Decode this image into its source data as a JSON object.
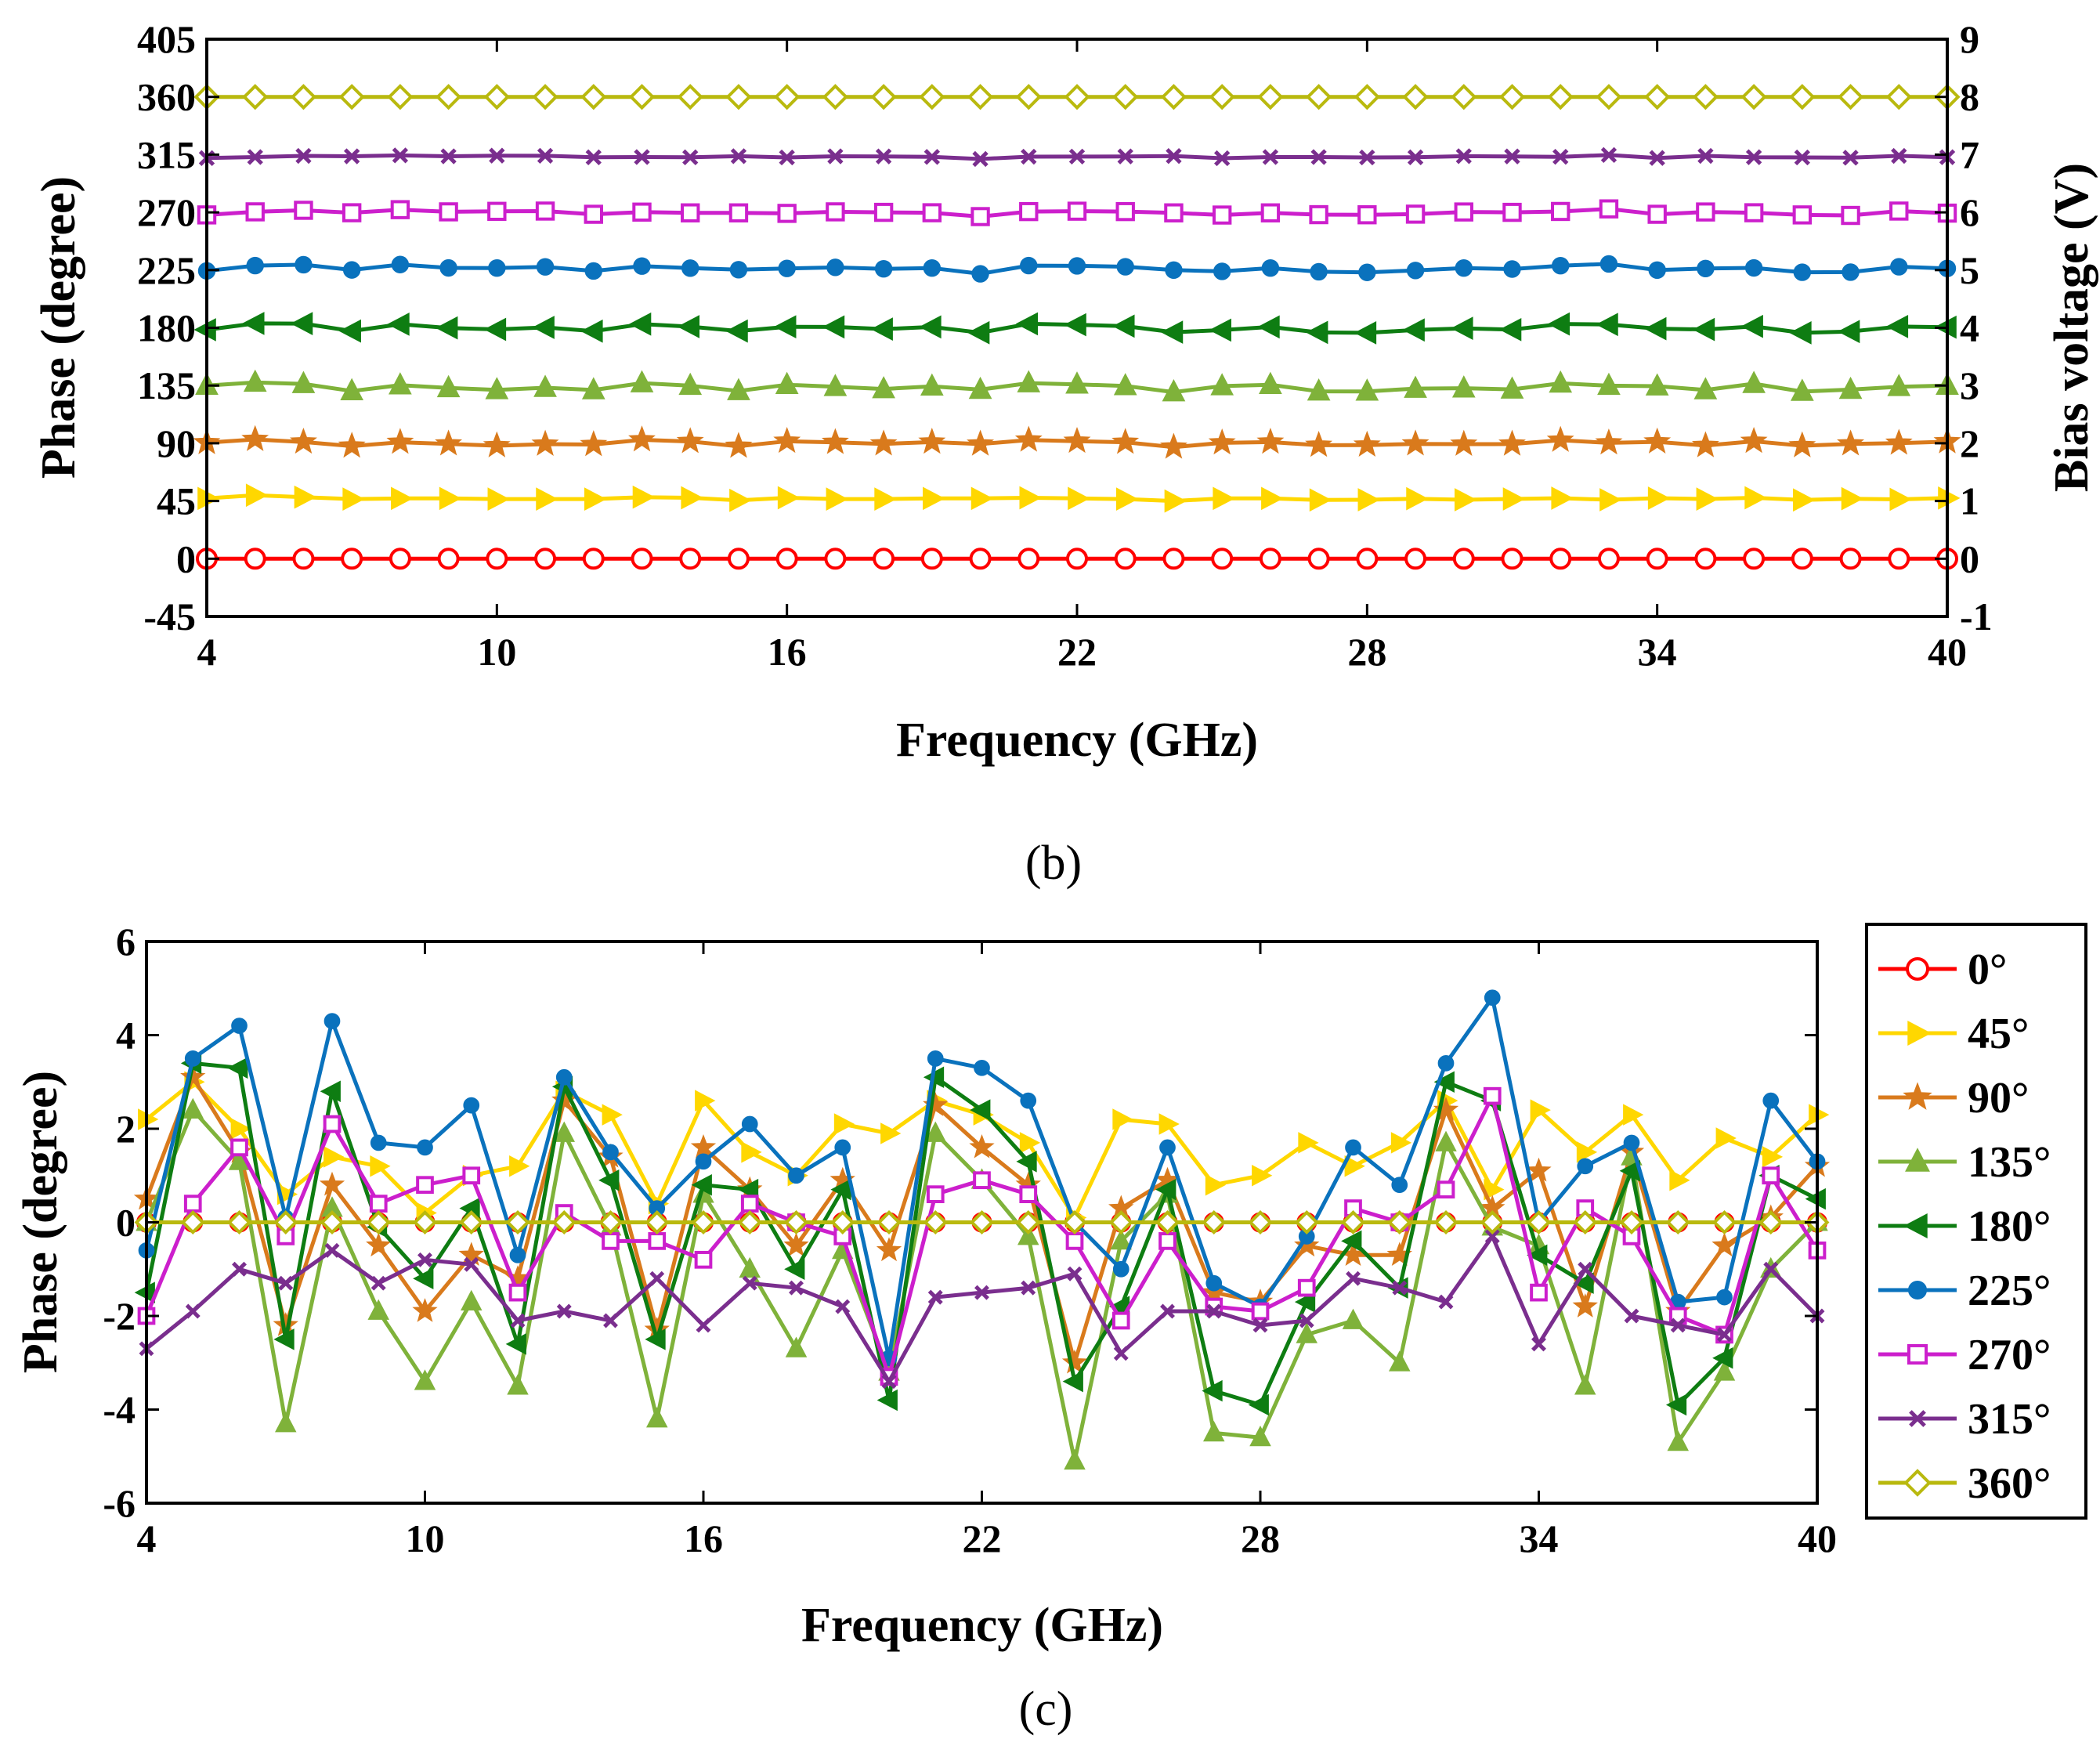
{
  "colors": {
    "0": "#FF0000",
    "45": "#FFD700",
    "90": "#D97A1C",
    "135": "#7FB23A",
    "180": "#0E7D12",
    "225": "#0A72BD",
    "270": "#CC1FCC",
    "315": "#7A2E8E",
    "360": "#B9B90E"
  },
  "chart_data": [
    {
      "panel": "b",
      "type": "line",
      "caption": "(b)",
      "xlabel": "Frequency (GHz)",
      "ylabel": "Phase (degree)",
      "y2label": "Bias voltage (V)",
      "xlim": [
        4,
        40
      ],
      "ylim": [
        -45,
        405
      ],
      "y2lim": [
        -1,
        9
      ],
      "xticks": [
        "4",
        "10",
        "16",
        "22",
        "28",
        "34",
        "40"
      ],
      "yticks": [
        "-45",
        "0",
        "45",
        "90",
        "135",
        "180",
        "225",
        "270",
        "315",
        "360",
        "405"
      ],
      "y2ticks": [
        "-1",
        "0",
        "1",
        "2",
        "3",
        "4",
        "5",
        "6",
        "7",
        "8",
        "9"
      ],
      "grid": false,
      "x": [
        4,
        5,
        6,
        7,
        8,
        9,
        10,
        11,
        12,
        13,
        14,
        15,
        16,
        17,
        18,
        19,
        20,
        21,
        22,
        23,
        24,
        25,
        26,
        27,
        28,
        29,
        30,
        31,
        32,
        33,
        34,
        35,
        36,
        37,
        38,
        39,
        40
      ],
      "series": [
        {
          "name": "0°",
          "marker": "circle",
          "values": [
            0,
            0,
            0,
            0,
            0,
            0,
            0,
            0,
            0,
            0,
            0,
            0,
            0,
            0,
            0,
            0,
            0,
            0,
            0,
            0,
            0,
            0,
            0,
            0,
            0,
            0,
            0,
            0,
            0,
            0,
            0,
            0,
            0,
            0,
            0,
            0,
            0
          ]
        },
        {
          "name": "45°",
          "marker": "triangle-right",
          "values": [
            47,
            49.5,
            48,
            46.5,
            47,
            47,
            46.5,
            46.5,
            46.5,
            48,
            47.5,
            45.5,
            47.5,
            46.5,
            46.5,
            47,
            47,
            47.5,
            47,
            46.5,
            45,
            47,
            47,
            45.8,
            46,
            46.8,
            46,
            46.6,
            47.2,
            46,
            47.2,
            46.5,
            47.5,
            45.8,
            46.8,
            46.3,
            47.3
          ]
        },
        {
          "name": "90°",
          "marker": "star",
          "values": [
            90.5,
            93,
            91,
            87.8,
            90.8,
            89.5,
            88.1,
            89.3,
            89,
            92.7,
            91.4,
            87.7,
            91.6,
            90.7,
            89.5,
            90.9,
            89.4,
            92.5,
            91.6,
            90.8,
            87,
            90.3,
            90.9,
            88.5,
            88.6,
            89.5,
            89.3,
            89.4,
            92.4,
            90.3,
            91.1,
            88.2,
            91.5,
            88.1,
            89.5,
            90.1,
            91.2
          ]
        },
        {
          "name": "135°",
          "marker": "triangle-up",
          "values": [
            135,
            137.4,
            136.3,
            130.7,
            135.3,
            133.1,
            131.6,
            133.3,
            131.5,
            136.9,
            134.9,
            130.8,
            135.6,
            134,
            132.3,
            134.4,
            131.8,
            136.9,
            135.9,
            134.7,
            129.9,
            134.6,
            135.6,
            130.5,
            130.4,
            132.6,
            132.9,
            132,
            136.7,
            134.9,
            134.5,
            131.5,
            136.4,
            130.3,
            131.8,
            134,
            135
          ]
        },
        {
          "name": "180°",
          "marker": "triangle-left",
          "values": [
            178.5,
            183.4,
            183.3,
            177.5,
            182.8,
            179.9,
            178.8,
            180.3,
            177.4,
            182.9,
            180.9,
            177.5,
            180.8,
            180.7,
            179,
            180.7,
            176.2,
            183.1,
            182.4,
            181.3,
            176.6,
            178.2,
            180.7,
            176.4,
            176.1,
            178.3,
            179.6,
            178.6,
            183,
            182.6,
            179.3,
            178.7,
            181.1,
            176.1,
            177.1,
            181,
            180.5
          ]
        },
        {
          "name": "225°",
          "marker": "circle-filled",
          "values": [
            224.4,
            228.5,
            229.2,
            225.1,
            229.3,
            226.7,
            226.6,
            227.5,
            224.3,
            228.1,
            226.5,
            225.3,
            226.3,
            227.1,
            226,
            226.6,
            222.1,
            228.5,
            228.3,
            227.6,
            225,
            224,
            226.6,
            223.7,
            223.2,
            224.7,
            226.6,
            225.8,
            228.4,
            229.8,
            225,
            226.2,
            226.7,
            223.3,
            223.4,
            227.6,
            226.3
          ]
        },
        {
          "name": "270°",
          "marker": "square",
          "values": [
            268,
            270.4,
            271.6,
            269.7,
            272.1,
            270.4,
            270.8,
            271,
            268.5,
            270.2,
            269.6,
            269.6,
            269.2,
            270.4,
            270,
            269.7,
            266.7,
            270.6,
            270.9,
            270.6,
            269.6,
            267.9,
            269.6,
            268.2,
            268.1,
            268.6,
            270.3,
            270,
            270.7,
            272.7,
            268.5,
            270.3,
            269.7,
            268,
            267.6,
            271,
            269.4
          ]
        },
        {
          "name": "315°",
          "marker": "x",
          "values": [
            312.3,
            313.1,
            314,
            313.7,
            314.4,
            313.7,
            314.2,
            314.1,
            312.9,
            313.1,
            312.9,
            313.8,
            312.8,
            313.7,
            313.6,
            313.2,
            311.6,
            313.4,
            313.5,
            313.6,
            313.9,
            312.2,
            313.1,
            313.1,
            312.8,
            312.9,
            313.8,
            313.6,
            313.3,
            314.7,
            312.4,
            314,
            313,
            312.8,
            312.6,
            314,
            313
          ]
        },
        {
          "name": "360°",
          "marker": "diamond",
          "values": [
            360,
            360,
            360,
            360,
            360,
            360,
            360,
            360,
            360,
            360,
            360,
            360,
            360,
            360,
            360,
            360,
            360,
            360,
            360,
            360,
            360,
            360,
            360,
            360,
            360,
            360,
            360,
            360,
            360,
            360,
            360,
            360,
            360,
            360,
            360,
            360,
            360
          ]
        }
      ]
    },
    {
      "panel": "c",
      "type": "line",
      "caption": "(c)",
      "xlabel": "Frequency (GHz)",
      "ylabel": "Phase (degree)",
      "xlim": [
        4,
        40
      ],
      "ylim": [
        -6,
        6
      ],
      "xticks": [
        "4",
        "10",
        "16",
        "22",
        "28",
        "34",
        "40"
      ],
      "yticks": [
        "-6",
        "-4",
        "-2",
        "0",
        "2",
        "4",
        "6"
      ],
      "grid": false,
      "legend": "outside-right",
      "x": [
        4,
        5,
        6,
        7,
        8,
        9,
        10,
        11,
        12,
        13,
        14,
        15,
        16,
        17,
        18,
        19,
        20,
        21,
        22,
        23,
        24,
        25,
        26,
        27,
        28,
        29,
        30,
        31,
        32,
        33,
        34,
        35,
        36,
        37,
        38,
        39,
        40
      ],
      "series": [
        {
          "name": "0°",
          "marker": "circle",
          "values": [
            0,
            0,
            0,
            0,
            0,
            0,
            0,
            0,
            0,
            0,
            0,
            0,
            0,
            0,
            0,
            0,
            0,
            0,
            0,
            0,
            0,
            0,
            0,
            0,
            0,
            0,
            0,
            0,
            0,
            0,
            0,
            0,
            0,
            0,
            0,
            0,
            0
          ]
        },
        {
          "name": "45°",
          "marker": "triangle-right",
          "values": [
            2.2,
            3,
            2,
            0.6,
            1.4,
            1.2,
            0.2,
            1,
            1.2,
            2.8,
            2.3,
            0.4,
            2.6,
            1.5,
            1,
            2.1,
            1.9,
            2.6,
            2.3,
            1.7,
            0.1,
            2.2,
            2.1,
            0.8,
            1,
            1.7,
            1.2,
            1.7,
            2.6,
            0.7,
            2.4,
            1.5,
            2.3,
            0.9,
            1.8,
            1.4,
            2.3
          ]
        },
        {
          "name": "90°",
          "marker": "star",
          "values": [
            0.5,
            3.1,
            1.5,
            -2.2,
            0.8,
            -0.5,
            -1.9,
            -0.7,
            -1.2,
            2.6,
            1.4,
            -2.3,
            1.6,
            0.7,
            -0.5,
            0.9,
            -0.6,
            2.5,
            1.6,
            0.8,
            -3,
            0.3,
            0.9,
            -1.5,
            -1.7,
            -0.5,
            -0.7,
            -0.7,
            2.4,
            0.3,
            1.1,
            -1.8,
            1.5,
            -1.9,
            -0.5,
            0.1,
            1.2
          ]
        },
        {
          "name": "135°",
          "marker": "triangle-up",
          "values": [
            0,
            2.4,
            1.3,
            -4.3,
            0.3,
            -1.9,
            -3.4,
            -1.7,
            -3.5,
            1.9,
            -0.1,
            -4.2,
            0.6,
            -1,
            -2.7,
            -0.6,
            -3.2,
            1.9,
            0.9,
            -0.3,
            -5.1,
            -0.4,
            0.6,
            -4.5,
            -4.6,
            -2.4,
            -2.1,
            -3,
            1.7,
            -0.1,
            -0.5,
            -3.5,
            1.4,
            -4.7,
            -3.2,
            -1,
            0
          ]
        },
        {
          "name": "180°",
          "marker": "triangle-left",
          "values": [
            -1.5,
            3.4,
            3.3,
            -2.5,
            2.8,
            -0.1,
            -1.2,
            0.3,
            -2.6,
            2.9,
            0.9,
            -2.5,
            0.8,
            0.7,
            -1,
            0.7,
            -3.8,
            3.1,
            2.4,
            1.3,
            -3.4,
            -1.8,
            0.7,
            -3.6,
            -3.9,
            -1.7,
            -0.4,
            -1.4,
            3,
            2.6,
            -0.7,
            -1.3,
            1.1,
            -3.9,
            -2.9,
            1,
            0.5
          ]
        },
        {
          "name": "225°",
          "marker": "circle-filled",
          "values": [
            -0.6,
            3.5,
            4.2,
            0.1,
            4.3,
            1.7,
            1.6,
            2.5,
            -0.7,
            3.1,
            1.5,
            0.3,
            1.3,
            2.1,
            1,
            1.6,
            -2.9,
            3.5,
            3.3,
            2.6,
            0,
            -1,
            1.6,
            -1.3,
            -1.8,
            -0.3,
            1.6,
            0.8,
            3.4,
            4.8,
            0,
            1.2,
            1.7,
            -1.7,
            -1.6,
            2.6,
            1.3
          ]
        },
        {
          "name": "270°",
          "marker": "square",
          "values": [
            -2,
            0.4,
            1.6,
            -0.3,
            2.1,
            0.4,
            0.8,
            1,
            -1.5,
            0.2,
            -0.4,
            -0.4,
            -0.8,
            0.4,
            0,
            -0.3,
            -3.3,
            0.6,
            0.9,
            0.6,
            -0.4,
            -2.1,
            -0.4,
            -1.8,
            -1.9,
            -1.4,
            0.3,
            0,
            0.7,
            2.7,
            -1.5,
            0.3,
            -0.3,
            -2,
            -2.4,
            1,
            -0.6
          ]
        },
        {
          "name": "315°",
          "marker": "x",
          "values": [
            -2.7,
            -1.9,
            -1,
            -1.3,
            -0.6,
            -1.3,
            -0.8,
            -0.9,
            -2.1,
            -1.9,
            -2.1,
            -1.2,
            -2.2,
            -1.3,
            -1.4,
            -1.8,
            -3.4,
            -1.6,
            -1.5,
            -1.4,
            -1.1,
            -2.8,
            -1.9,
            -1.9,
            -2.2,
            -2.1,
            -1.2,
            -1.4,
            -1.7,
            -0.3,
            -2.6,
            -1,
            -2,
            -2.2,
            -2.4,
            -1,
            -2
          ]
        },
        {
          "name": "360°",
          "marker": "diamond",
          "values": [
            0,
            0,
            0,
            0,
            0,
            0,
            0,
            0,
            0,
            0,
            0,
            0,
            0,
            0,
            0,
            0,
            0,
            0,
            0,
            0,
            0,
            0,
            0,
            0,
            0,
            0,
            0,
            0,
            0,
            0,
            0,
            0,
            0,
            0,
            0,
            0,
            0
          ]
        }
      ]
    }
  ]
}
